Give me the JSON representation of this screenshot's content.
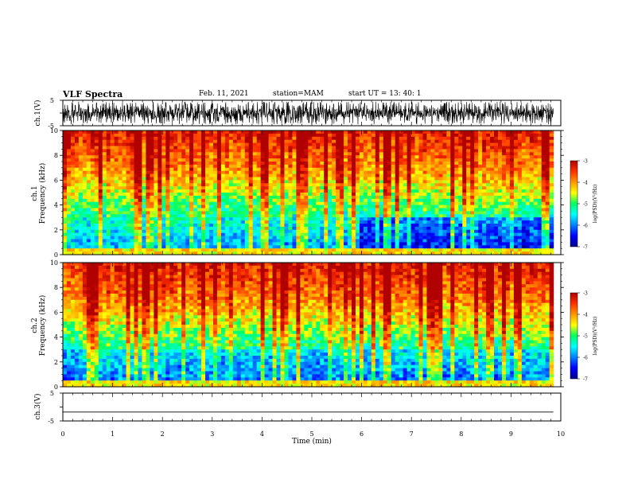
{
  "header": {
    "title": "VLF Spectra",
    "date": "Feb. 11, 2021",
    "station": "station=MAM",
    "start": "start UT =  13: 40: 1"
  },
  "chart_data": [
    {
      "type": "line",
      "panel": "ch1-waveform",
      "ylabel": "ch.1(V)",
      "yticks": [
        "5",
        "-5"
      ],
      "ylim": [
        -5,
        5
      ],
      "xlim": [
        0,
        10
      ],
      "description_values": "dense impulsive sferic waveform spanning roughly -4 to 5 V"
    },
    {
      "type": "heatmap",
      "panel": "ch1-spectrogram",
      "ylabel_top": "ch.1",
      "ylabel": "Frequency (kHz)",
      "yticks": [
        "0",
        "2",
        "4",
        "6",
        "8",
        "10"
      ],
      "ylim": [
        0,
        10
      ],
      "xlim": [
        0,
        9.85
      ],
      "colorbar": {
        "label": "log(PSD)(V²/Hz)",
        "ticks": [
          "-3",
          "-4",
          "-5",
          "-6",
          "-7"
        ],
        "range": [
          -7,
          -3
        ]
      }
    },
    {
      "type": "heatmap",
      "panel": "ch2-spectrogram",
      "ylabel_top": "ch.2",
      "ylabel": "Frequency (kHz)",
      "yticks": [
        "0",
        "2",
        "4",
        "6",
        "8",
        "10"
      ],
      "ylim": [
        0,
        10
      ],
      "xlim": [
        0,
        9.85
      ],
      "colorbar": {
        "label": "log(PSD)(V²/Hz)",
        "ticks": [
          "-3",
          "-4",
          "-5",
          "-6",
          "-7"
        ],
        "range": [
          -7,
          -3
        ]
      }
    },
    {
      "type": "line",
      "panel": "ch3-waveform",
      "ylabel": "ch.3(V)",
      "yticks": [
        "5",
        "-5"
      ],
      "ylim": [
        -5,
        5
      ],
      "xlim": [
        0,
        10
      ],
      "x": [
        0,
        9.85
      ],
      "y": [
        -1.8,
        -1.8
      ]
    }
  ],
  "xaxis": {
    "label": "Time (min)",
    "ticks": [
      "0",
      "1",
      "2",
      "3",
      "4",
      "5",
      "6",
      "7",
      "8",
      "9",
      "10"
    ]
  },
  "colors": {
    "frame": "#000000",
    "low": "#00008f",
    "high": "#cc0000"
  }
}
